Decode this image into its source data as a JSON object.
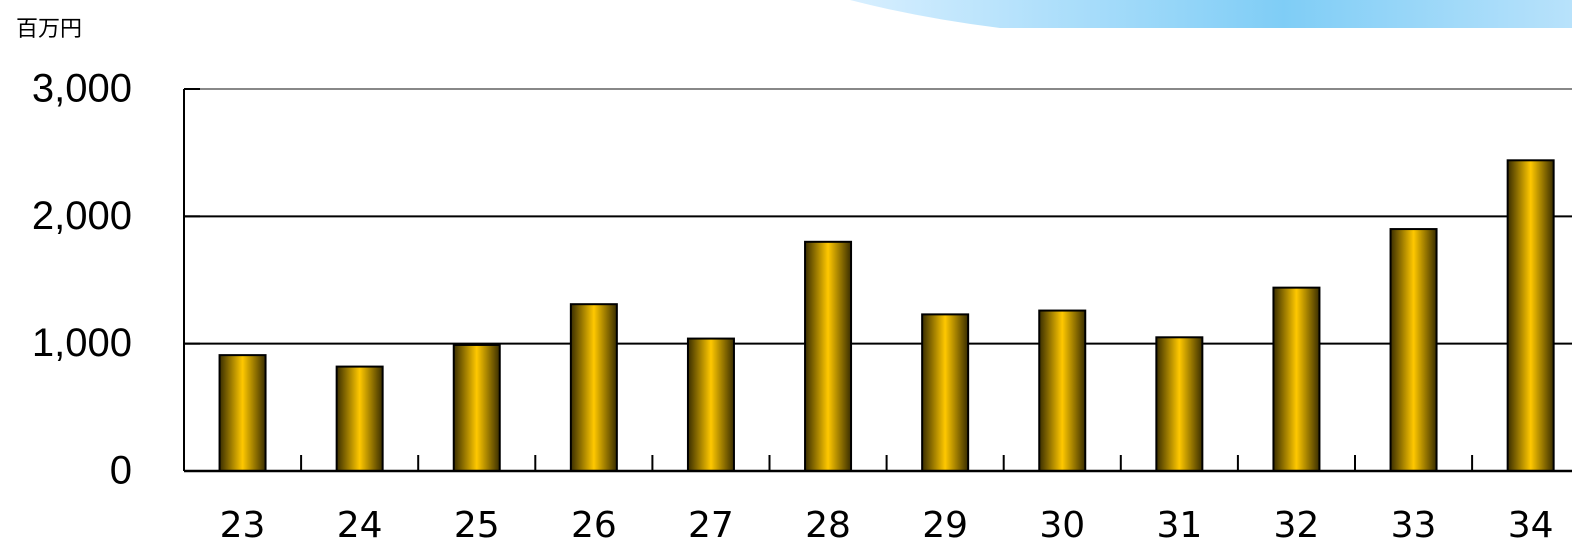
{
  "chart_data": {
    "type": "bar",
    "y_unit": "百万円",
    "categories": [
      "23",
      "24",
      "25",
      "26",
      "27",
      "28",
      "29",
      "30",
      "31",
      "32",
      "33",
      "34"
    ],
    "values": [
      910,
      820,
      990,
      1310,
      1040,
      1800,
      1230,
      1260,
      1050,
      1440,
      1900,
      2440
    ],
    "color": "#ffc800",
    "ylim": [
      0,
      3000
    ],
    "yticks": [
      0,
      {
        "value": 1000,
        "label": "1,000"
      },
      {
        "value": 2000,
        "label": "2,000"
      },
      {
        "value": 3000,
        "label": "3,000"
      }
    ],
    "grid": true
  }
}
